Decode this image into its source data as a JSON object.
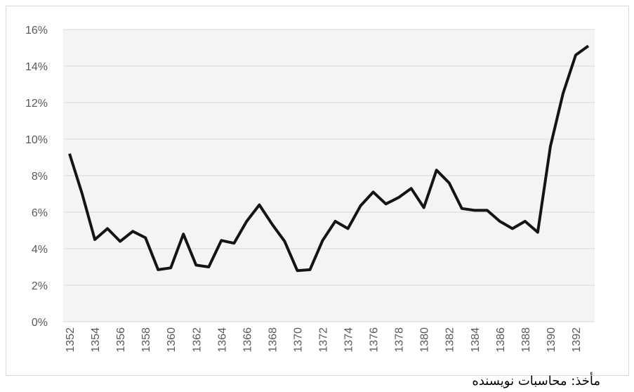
{
  "chart_data": {
    "type": "line",
    "categories": [
      "1352",
      null,
      "1354",
      null,
      "1356",
      null,
      "1358",
      null,
      "1360",
      null,
      "1362",
      null,
      "1364",
      null,
      "1366",
      null,
      "1368",
      null,
      "1370",
      null,
      "1372",
      null,
      "1374",
      null,
      "1376",
      null,
      "1378",
      null,
      "1380",
      null,
      "1382",
      null,
      "1384",
      null,
      "1386",
      null,
      "1388",
      null,
      "1390",
      null,
      "1392",
      null
    ],
    "values": [
      9.2,
      7.0,
      4.5,
      5.1,
      4.4,
      4.95,
      4.6,
      2.85,
      2.95,
      4.8,
      3.1,
      3.0,
      4.45,
      4.3,
      5.5,
      6.4,
      5.35,
      4.4,
      2.8,
      2.85,
      4.45,
      5.5,
      5.1,
      6.35,
      7.1,
      6.45,
      6.8,
      7.3,
      6.25,
      8.3,
      7.6,
      6.2,
      6.1,
      6.1,
      5.5,
      5.1,
      5.5,
      4.9,
      9.6,
      12.5,
      14.6,
      15.1
    ],
    "color": "#141414",
    "ylim": [
      0,
      16
    ],
    "yticks": [
      {
        "value": 0,
        "label": "0%"
      },
      {
        "value": 2,
        "label": "2%"
      },
      {
        "value": 4,
        "label": "4%"
      },
      {
        "value": 6,
        "label": "6%"
      },
      {
        "value": 8,
        "label": "8%"
      },
      {
        "value": 10,
        "label": "10%"
      },
      {
        "value": 12,
        "label": "12%"
      },
      {
        "value": 14,
        "label": "14%"
      },
      {
        "value": 16,
        "label": "16%"
      }
    ],
    "grid": true
  },
  "source": "مأخذ: محاسبات نویسنده"
}
